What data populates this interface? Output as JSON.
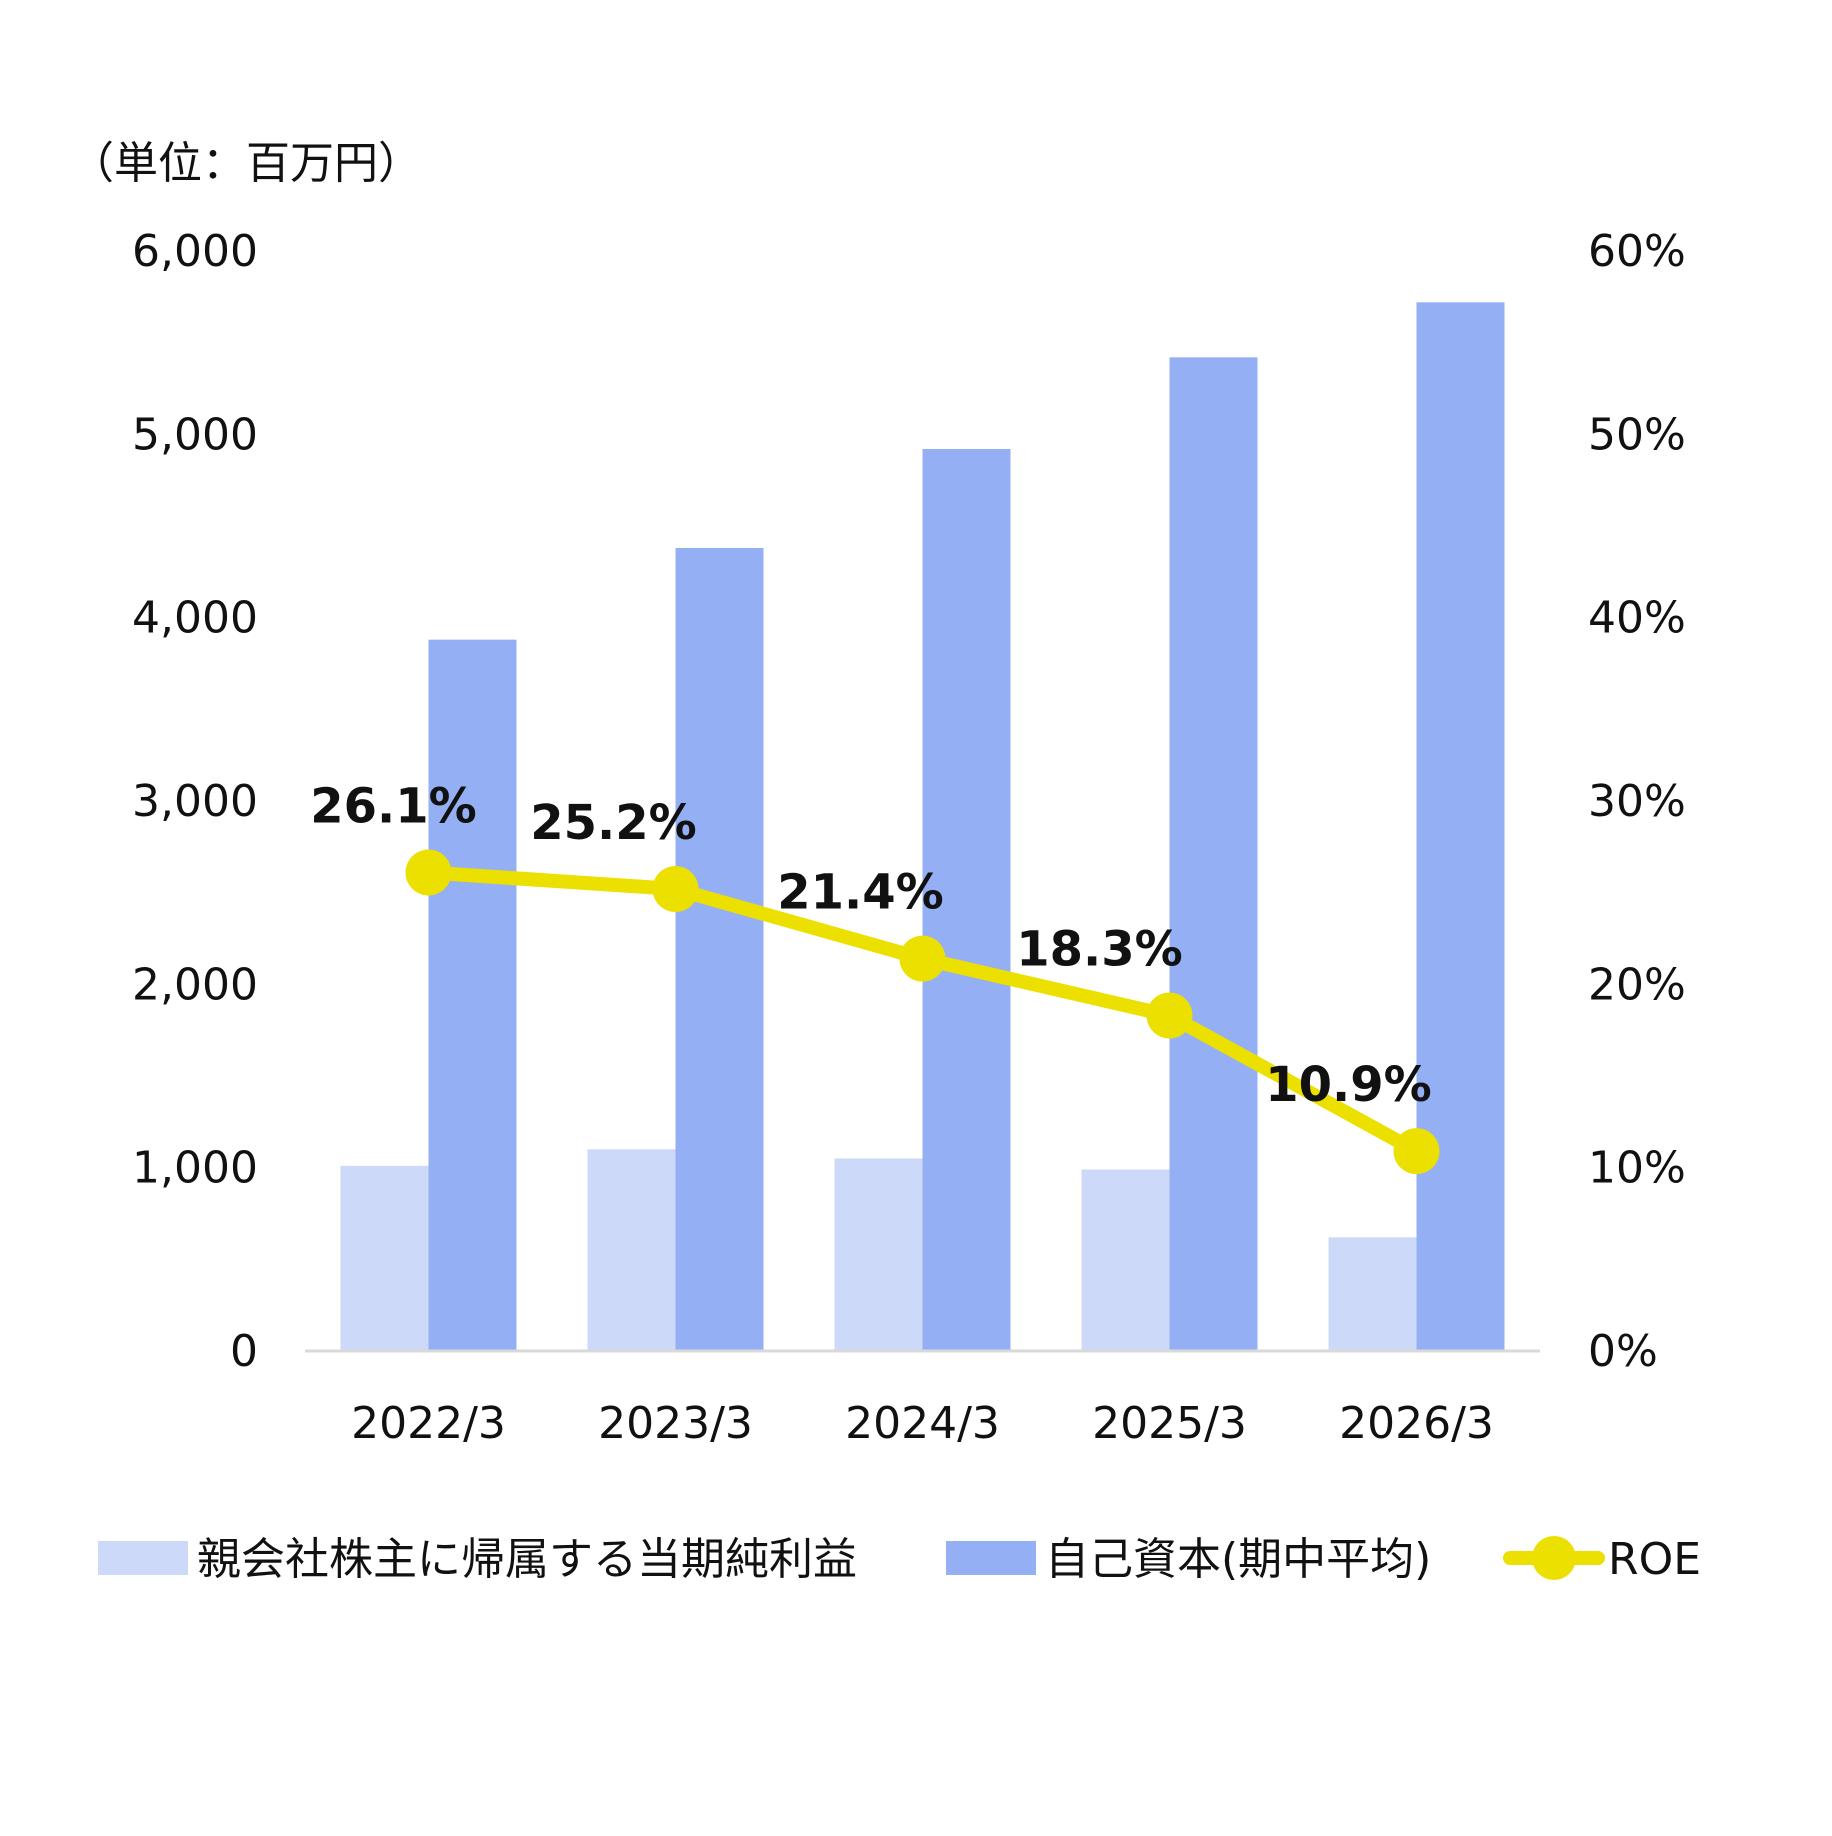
{
  "chart_data": {
    "type": "bar",
    "unit_label": "（単位：百万円）",
    "categories": [
      "2022/3",
      "2023/3",
      "2024/3",
      "2025/3",
      "2026/3"
    ],
    "series": [
      {
        "name": "親会社株主に帰属する当期純利益",
        "type": "bar",
        "axis": "left",
        "color": "#ccd9f8",
        "values": [
          1010,
          1100,
          1050,
          990,
          620
        ]
      },
      {
        "name": "自己資本(期中平均)",
        "type": "bar",
        "axis": "left",
        "color": "#94aff3",
        "values": [
          3880,
          4380,
          4920,
          5420,
          5720
        ]
      },
      {
        "name": "ROE",
        "type": "line",
        "axis": "right",
        "color": "#ece000",
        "values": [
          26.1,
          25.2,
          21.4,
          18.3,
          10.9
        ],
        "labels": [
          "26.1%",
          "25.2%",
          "21.4%",
          "18.3%",
          "10.9%"
        ]
      }
    ],
    "left_axis": {
      "ylim": [
        0,
        6000
      ],
      "ticks": [
        "0",
        "1,000",
        "2,000",
        "3,000",
        "4,000",
        "5,000",
        "6,000"
      ]
    },
    "right_axis": {
      "ylim": [
        0,
        60
      ],
      "ticks": [
        "0%",
        "10%",
        "20%",
        "30%",
        "40%",
        "50%",
        "60%"
      ]
    },
    "grid": false,
    "legend_position": "bottom"
  }
}
